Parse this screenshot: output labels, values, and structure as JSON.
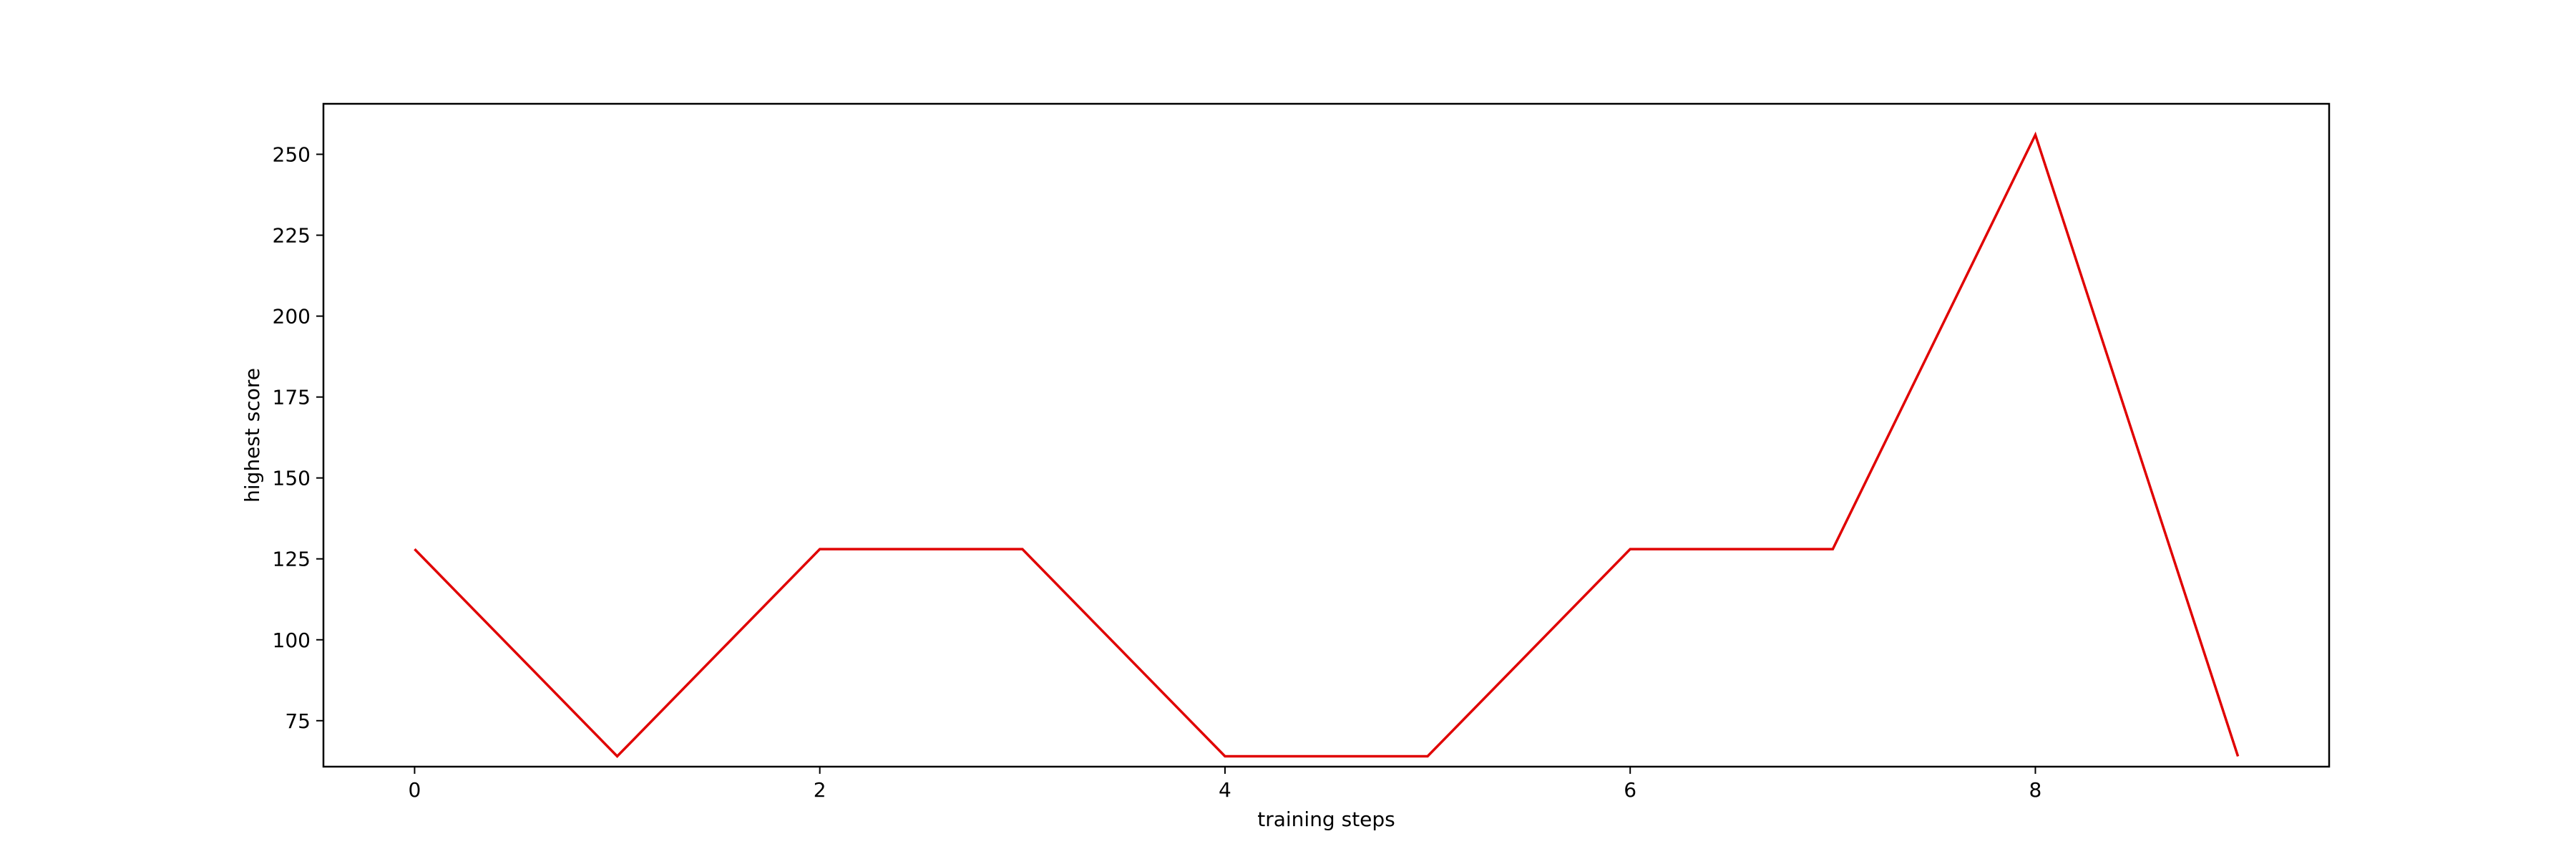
{
  "chart_data": {
    "type": "line",
    "xlabel": "training steps",
    "ylabel": "highest score",
    "xlim": [
      -0.45,
      9.45
    ],
    "ylim": [
      60.8,
      265.6
    ],
    "x_ticks": [
      0,
      2,
      4,
      6,
      8
    ],
    "y_ticks": [
      75,
      100,
      125,
      150,
      175,
      200,
      225,
      250
    ],
    "grid": false,
    "series": [
      {
        "x": [
          0,
          1,
          2,
          3,
          4,
          5,
          6,
          7,
          8,
          9
        ],
        "values": [
          128,
          64,
          128,
          128,
          64,
          64,
          128,
          128,
          256,
          64
        ],
        "color": "#e00000"
      }
    ]
  }
}
